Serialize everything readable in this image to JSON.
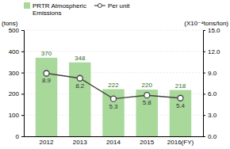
{
  "chart_data": {
    "type": "bar",
    "categories": [
      "2012",
      "2013",
      "2014",
      "2015",
      "2016(FY)"
    ],
    "series": [
      {
        "name": "PRTR Atmospheric\nEmissions",
        "type": "bar",
        "color": "#a8d89a",
        "values": [
          370,
          348,
          222,
          220,
          218
        ],
        "data_labels": true
      },
      {
        "name": "Per unit",
        "type": "line",
        "color": "#444444",
        "marker": "circle",
        "axis": "y2",
        "values": [
          8.9,
          8.2,
          5.3,
          5.8,
          5.4
        ],
        "data_labels": true
      }
    ],
    "y_label": "(tons)",
    "y2_label": "(X10⁻⁴tons/ton)",
    "ylim": [
      0,
      500
    ],
    "yticks": [
      0,
      100,
      200,
      300,
      400,
      500
    ],
    "y2lim": [
      0.0,
      15.0
    ],
    "y2ticks": [
      {
        "value": 0,
        "label": "0.0"
      },
      {
        "value": 3,
        "label": "3.0"
      },
      {
        "value": 6,
        "label": "6.0"
      },
      {
        "value": 9,
        "label": "9.0"
      },
      {
        "value": 12,
        "label": "12.0"
      },
      {
        "value": 15,
        "label": "15.0"
      }
    ],
    "grid": true,
    "legend": "top"
  }
}
